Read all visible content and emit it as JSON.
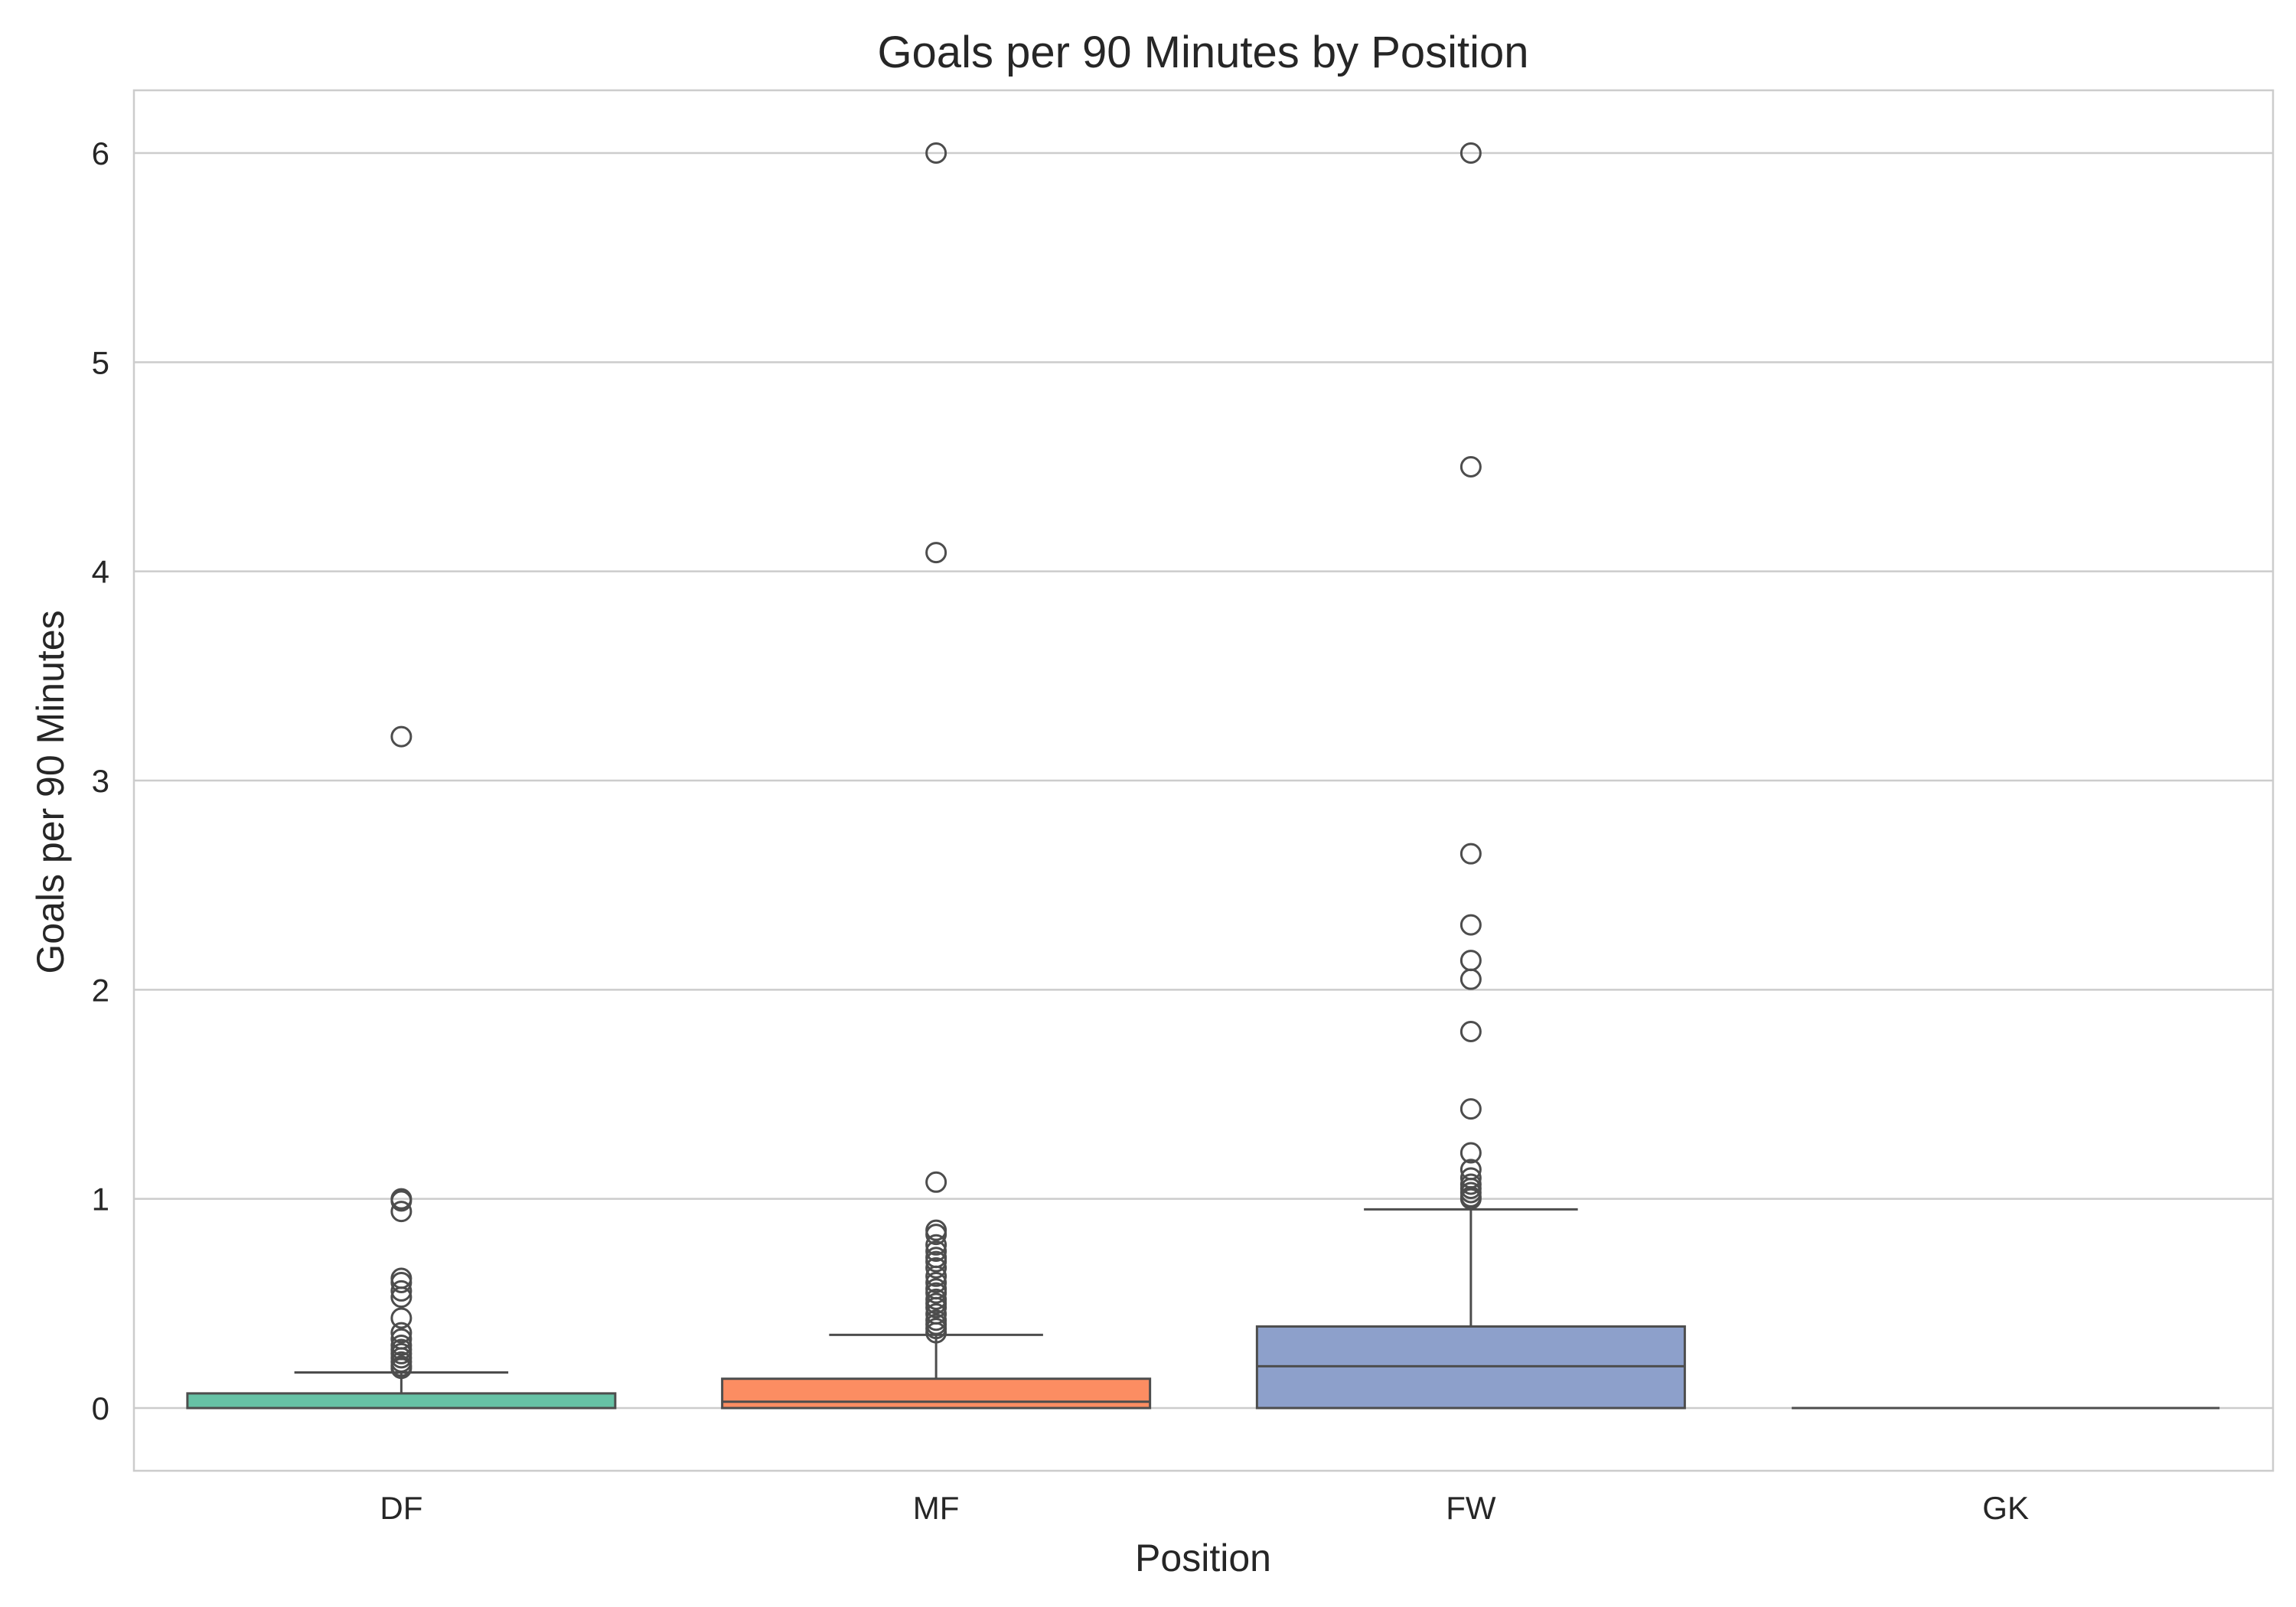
{
  "chart_data": {
    "type": "box",
    "title": "Goals per 90 Minutes by Position",
    "xlabel": "Position",
    "ylabel": "Goals per 90 Minutes",
    "ylim": [
      -0.3,
      6.3
    ],
    "yticks": [
      0,
      1,
      2,
      3,
      4,
      5,
      6
    ],
    "grid": "horizontal",
    "categories": [
      "DF",
      "MF",
      "FW",
      "GK"
    ],
    "boxes": [
      {
        "category": "DF",
        "color": "#66c2a5",
        "whisker_low": 0,
        "q1": 0,
        "median": 0,
        "q3": 0.07,
        "whisker_high": 0.17,
        "outliers": [
          3.21,
          1.0,
          0.99,
          0.94,
          0.62,
          0.6,
          0.56,
          0.53,
          0.43,
          0.36,
          0.33,
          0.3,
          0.28,
          0.26,
          0.24,
          0.22,
          0.2,
          0.19
        ]
      },
      {
        "category": "MF",
        "color": "#fc8d62",
        "whisker_low": 0,
        "q1": 0,
        "median": 0.03,
        "q3": 0.14,
        "whisker_high": 0.35,
        "outliers": [
          6.0,
          4.09,
          1.08,
          0.85,
          0.83,
          0.78,
          0.75,
          0.72,
          0.7,
          0.67,
          0.63,
          0.6,
          0.57,
          0.55,
          0.52,
          0.5,
          0.48,
          0.45,
          0.42,
          0.4,
          0.38,
          0.36
        ]
      },
      {
        "category": "FW",
        "color": "#8da0cb",
        "whisker_low": 0,
        "q1": 0,
        "median": 0.2,
        "q3": 0.39,
        "whisker_high": 0.95,
        "outliers": [
          6.0,
          4.5,
          2.65,
          2.31,
          2.14,
          2.05,
          1.8,
          1.43,
          1.22,
          1.14,
          1.1,
          1.07,
          1.05,
          1.03,
          1.01,
          1.0
        ]
      },
      {
        "category": "GK",
        "color": "#e78ac3",
        "whisker_low": 0,
        "q1": 0,
        "median": 0,
        "q3": 0,
        "whisker_high": 0,
        "outliers": []
      }
    ]
  }
}
